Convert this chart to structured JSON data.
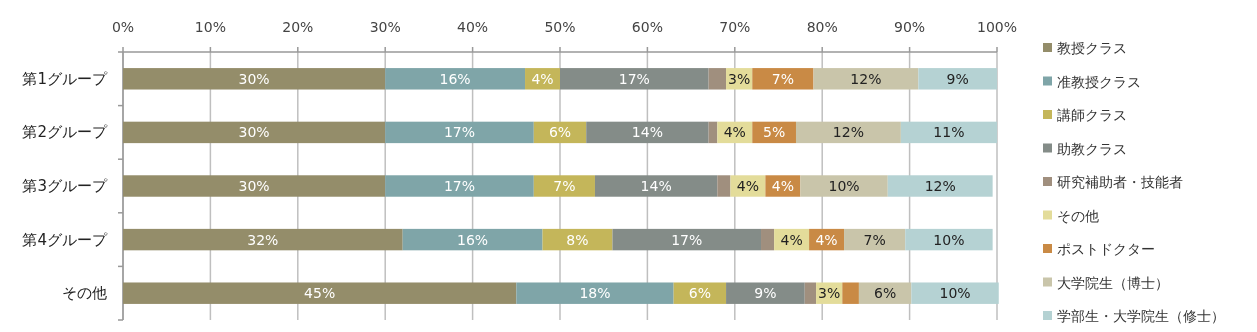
{
  "chart_data": {
    "type": "bar",
    "orientation": "horizontal",
    "stacked": true,
    "categories": [
      "第1グループ",
      "第2グループ",
      "第3グループ",
      "第4グループ",
      "その他"
    ],
    "xlim": [
      0,
      100
    ],
    "xticks": [
      {
        "value": 0,
        "label": "0%"
      },
      {
        "value": 10,
        "label": "10%"
      },
      {
        "value": 20,
        "label": "20%"
      },
      {
        "value": 30,
        "label": "30%"
      },
      {
        "value": 40,
        "label": "40%"
      },
      {
        "value": 50,
        "label": "50%"
      },
      {
        "value": 60,
        "label": "60%"
      },
      {
        "value": 70,
        "label": "70%"
      },
      {
        "value": 80,
        "label": "80%"
      },
      {
        "value": 90,
        "label": "90%"
      },
      {
        "value": 100,
        "label": "100%"
      }
    ],
    "grid": "x",
    "legend": "right",
    "series": [
      {
        "name": "教授クラス",
        "color": "#948d6a",
        "values": [
          30,
          30,
          30,
          32,
          45
        ],
        "value_labels": [
          "30%",
          "30%",
          "30%",
          "32%",
          "45%"
        ]
      },
      {
        "name": "准教授クラス",
        "color": "#7fa5a8",
        "values": [
          16,
          17,
          17,
          16,
          18
        ],
        "value_labels": [
          "16%",
          "17%",
          "17%",
          "16%",
          "18%"
        ]
      },
      {
        "name": "講師クラス",
        "color": "#c4b65a",
        "values": [
          4,
          6,
          7,
          8,
          6
        ],
        "value_labels": [
          "4%",
          "6%",
          "7%",
          "8%",
          "6%"
        ]
      },
      {
        "name": "助教クラス",
        "color": "#848c88",
        "values": [
          17,
          14,
          14,
          17,
          9
        ],
        "value_labels": [
          "17%",
          "14%",
          "14%",
          "17%",
          "9%"
        ]
      },
      {
        "name": "研究補助者・技能者",
        "color": "#a08f7e",
        "values": [
          2,
          1,
          1.5,
          1.5,
          1.3
        ],
        "value_labels": [
          null,
          null,
          null,
          null,
          null
        ]
      },
      {
        "name": "その他",
        "color": "#e3dc9a",
        "values": [
          3,
          4,
          4,
          4,
          3
        ],
        "value_labels": [
          "3%",
          "4%",
          "4%",
          "4%",
          "3%"
        ]
      },
      {
        "name": "ポストドクター",
        "color": "#c98a45",
        "values": [
          7,
          5,
          4,
          4,
          1.9
        ],
        "value_labels": [
          "7%",
          "5%",
          "4%",
          "4%",
          null
        ]
      },
      {
        "name": "大学院生（博士）",
        "color": "#c9c5aa",
        "values": [
          12,
          12,
          10,
          7,
          6
        ],
        "value_labels": [
          "12%",
          "12%",
          "10%",
          "7%",
          "6%"
        ]
      },
      {
        "name": "学部生・大学院生（修士）",
        "color": "#b5d2d3",
        "values": [
          9,
          11,
          12,
          10,
          10
        ],
        "value_labels": [
          "9%",
          "11%",
          "12%",
          "10%",
          "10%"
        ]
      }
    ]
  }
}
